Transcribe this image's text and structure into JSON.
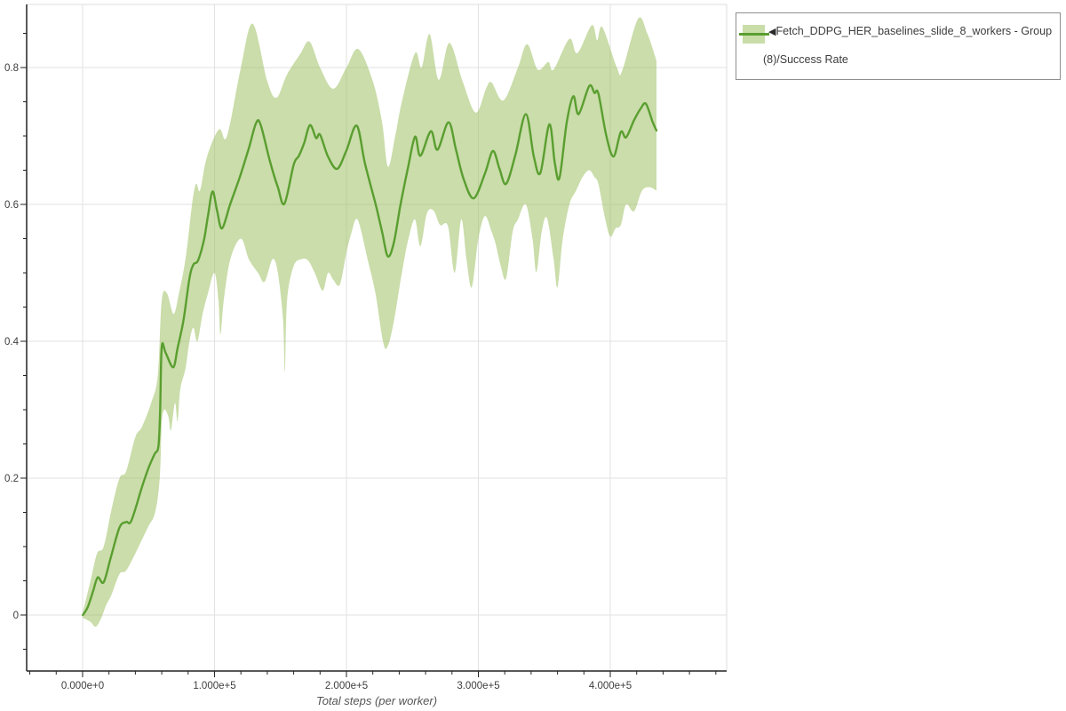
{
  "legend": {
    "collapse_icon": "◀",
    "series_label": "Fetch_DDPG_HER_baselines_slide_8_workers - Group (8)/Success Rate"
  },
  "chart_data": {
    "type": "line",
    "title": "",
    "xlabel": "Total steps (per worker)",
    "ylabel": "",
    "series_name": "Fetch_DDPG_HER_baselines_slide_8_workers - Group (8)/Success Rate",
    "grid": true,
    "legend_position": "top-right",
    "xlim": [
      -42400,
      488200
    ],
    "ylim": [
      -0.0818,
      0.8922
    ],
    "x_major_ticks": [
      0,
      100000,
      200000,
      300000,
      400000
    ],
    "x_tick_labels": [
      "0.000e+0",
      "1.000e+5",
      "2.000e+5",
      "3.000e+5",
      "4.000e+5"
    ],
    "x_minor_step": 20000,
    "y_major_ticks": [
      0,
      0.2,
      0.4,
      0.6,
      0.8
    ],
    "y_tick_labels": [
      "0",
      "0.2",
      "0.4",
      "0.6",
      "0.8"
    ],
    "y_minor_step": 0.05,
    "colors": {
      "line": "#5a9e30",
      "band": "#9fc164",
      "band_opacity": 0.55,
      "grid": "#e2e2e2",
      "axis": "#222222",
      "border": "#dcdcdc",
      "tick_label": "#3d3d3d",
      "axis_title": "#555555"
    },
    "mean": [
      [
        200,
        0.0
      ],
      [
        4000,
        0.012
      ],
      [
        8000,
        0.035
      ],
      [
        11500,
        0.055
      ],
      [
        16000,
        0.048
      ],
      [
        21500,
        0.085
      ],
      [
        28000,
        0.128
      ],
      [
        33000,
        0.136
      ],
      [
        37000,
        0.138
      ],
      [
        45000,
        0.187
      ],
      [
        50000,
        0.215
      ],
      [
        54500,
        0.235
      ],
      [
        57500,
        0.247
      ],
      [
        58800,
        0.3
      ],
      [
        60000,
        0.392
      ],
      [
        63000,
        0.383
      ],
      [
        68700,
        0.362
      ],
      [
        72000,
        0.39
      ],
      [
        76500,
        0.431
      ],
      [
        81000,
        0.492
      ],
      [
        84000,
        0.512
      ],
      [
        87500,
        0.518
      ],
      [
        92000,
        0.548
      ],
      [
        95000,
        0.583
      ],
      [
        98500,
        0.619
      ],
      [
        102000,
        0.59
      ],
      [
        105700,
        0.565
      ],
      [
        112000,
        0.601
      ],
      [
        119000,
        0.639
      ],
      [
        126000,
        0.682
      ],
      [
        131500,
        0.719
      ],
      [
        135000,
        0.716
      ],
      [
        142000,
        0.663
      ],
      [
        148000,
        0.625
      ],
      [
        153000,
        0.601
      ],
      [
        160000,
        0.658
      ],
      [
        164000,
        0.671
      ],
      [
        168000,
        0.69
      ],
      [
        172400,
        0.716
      ],
      [
        177000,
        0.697
      ],
      [
        180000,
        0.702
      ],
      [
        186000,
        0.67
      ],
      [
        193000,
        0.652
      ],
      [
        200000,
        0.679
      ],
      [
        207800,
        0.715
      ],
      [
        214000,
        0.66
      ],
      [
        222000,
        0.601
      ],
      [
        227000,
        0.56
      ],
      [
        231400,
        0.524
      ],
      [
        236000,
        0.545
      ],
      [
        241000,
        0.6
      ],
      [
        246500,
        0.652
      ],
      [
        252000,
        0.699
      ],
      [
        256000,
        0.671
      ],
      [
        264000,
        0.707
      ],
      [
        269000,
        0.68
      ],
      [
        277400,
        0.72
      ],
      [
        283000,
        0.68
      ],
      [
        289000,
        0.636
      ],
      [
        296500,
        0.609
      ],
      [
        305000,
        0.645
      ],
      [
        311000,
        0.678
      ],
      [
        316000,
        0.652
      ],
      [
        321000,
        0.63
      ],
      [
        328000,
        0.672
      ],
      [
        336000,
        0.732
      ],
      [
        342000,
        0.67
      ],
      [
        347000,
        0.646
      ],
      [
        353800,
        0.717
      ],
      [
        358000,
        0.66
      ],
      [
        361500,
        0.639
      ],
      [
        367000,
        0.72
      ],
      [
        372000,
        0.758
      ],
      [
        376000,
        0.732
      ],
      [
        384000,
        0.773
      ],
      [
        388000,
        0.763
      ],
      [
        391000,
        0.762
      ],
      [
        397000,
        0.7
      ],
      [
        402500,
        0.67
      ],
      [
        408000,
        0.706
      ],
      [
        412000,
        0.698
      ],
      [
        418000,
        0.723
      ],
      [
        423000,
        0.74
      ],
      [
        427000,
        0.747
      ],
      [
        432000,
        0.721
      ],
      [
        435000,
        0.708
      ]
    ],
    "band_upper": [
      [
        200,
        0.004
      ],
      [
        6000,
        0.05
      ],
      [
        11000,
        0.09
      ],
      [
        16000,
        0.1
      ],
      [
        22000,
        0.155
      ],
      [
        28000,
        0.2
      ],
      [
        33000,
        0.21
      ],
      [
        40000,
        0.26
      ],
      [
        45000,
        0.275
      ],
      [
        52000,
        0.31
      ],
      [
        57000,
        0.35
      ],
      [
        60000,
        0.46
      ],
      [
        64000,
        0.47
      ],
      [
        69000,
        0.44
      ],
      [
        73000,
        0.47
      ],
      [
        78000,
        0.52
      ],
      [
        83000,
        0.6
      ],
      [
        86000,
        0.63
      ],
      [
        89000,
        0.62
      ],
      [
        93000,
        0.66
      ],
      [
        98000,
        0.69
      ],
      [
        104000,
        0.71
      ],
      [
        108000,
        0.695
      ],
      [
        112000,
        0.72
      ],
      [
        120000,
        0.8
      ],
      [
        129000,
        0.864
      ],
      [
        140000,
        0.78
      ],
      [
        147000,
        0.756
      ],
      [
        155000,
        0.79
      ],
      [
        165000,
        0.82
      ],
      [
        172000,
        0.838
      ],
      [
        180000,
        0.8
      ],
      [
        190000,
        0.769
      ],
      [
        200000,
        0.8
      ],
      [
        209000,
        0.827
      ],
      [
        220000,
        0.78
      ],
      [
        227000,
        0.72
      ],
      [
        231500,
        0.655
      ],
      [
        237000,
        0.7
      ],
      [
        242000,
        0.75
      ],
      [
        252000,
        0.821
      ],
      [
        257000,
        0.8
      ],
      [
        263000,
        0.849
      ],
      [
        270000,
        0.782
      ],
      [
        278000,
        0.836
      ],
      [
        288000,
        0.78
      ],
      [
        298000,
        0.734
      ],
      [
        306000,
        0.77
      ],
      [
        310000,
        0.778
      ],
      [
        319000,
        0.752
      ],
      [
        330000,
        0.8
      ],
      [
        337000,
        0.834
      ],
      [
        345000,
        0.797
      ],
      [
        353000,
        0.808
      ],
      [
        357000,
        0.797
      ],
      [
        369000,
        0.842
      ],
      [
        375000,
        0.821
      ],
      [
        386000,
        0.862
      ],
      [
        390000,
        0.84
      ],
      [
        394000,
        0.859
      ],
      [
        405000,
        0.8
      ],
      [
        409000,
        0.795
      ],
      [
        421000,
        0.871
      ],
      [
        428000,
        0.85
      ],
      [
        435000,
        0.81
      ]
    ],
    "band_lower": [
      [
        200,
        -0.004
      ],
      [
        6000,
        -0.01
      ],
      [
        10000,
        -0.017
      ],
      [
        14000,
        -0.005
      ],
      [
        18000,
        0.015
      ],
      [
        22000,
        0.03
      ],
      [
        28000,
        0.06
      ],
      [
        33000,
        0.065
      ],
      [
        40000,
        0.09
      ],
      [
        45000,
        0.11
      ],
      [
        50000,
        0.13
      ],
      [
        55000,
        0.15
      ],
      [
        58500,
        0.2
      ],
      [
        60000,
        0.28
      ],
      [
        62000,
        0.3
      ],
      [
        65000,
        0.29
      ],
      [
        67000,
        0.27
      ],
      [
        70000,
        0.31
      ],
      [
        72000,
        0.283
      ],
      [
        74000,
        0.33
      ],
      [
        78000,
        0.36
      ],
      [
        81000,
        0.4
      ],
      [
        84000,
        0.42
      ],
      [
        87000,
        0.4
      ],
      [
        91000,
        0.44
      ],
      [
        95000,
        0.47
      ],
      [
        100000,
        0.5
      ],
      [
        103000,
        0.46
      ],
      [
        104500,
        0.41
      ],
      [
        107000,
        0.46
      ],
      [
        112000,
        0.52
      ],
      [
        120000,
        0.55
      ],
      [
        126000,
        0.52
      ],
      [
        133000,
        0.5
      ],
      [
        138000,
        0.487
      ],
      [
        144000,
        0.52
      ],
      [
        148000,
        0.5
      ],
      [
        152000,
        0.43
      ],
      [
        153300,
        0.356
      ],
      [
        155000,
        0.46
      ],
      [
        160000,
        0.51
      ],
      [
        166000,
        0.52
      ],
      [
        171000,
        0.518
      ],
      [
        176000,
        0.5
      ],
      [
        182000,
        0.474
      ],
      [
        186000,
        0.5
      ],
      [
        190000,
        0.49
      ],
      [
        195000,
        0.483
      ],
      [
        200000,
        0.53
      ],
      [
        204000,
        0.56
      ],
      [
        207000,
        0.578
      ],
      [
        210000,
        0.57
      ],
      [
        216000,
        0.52
      ],
      [
        222000,
        0.47
      ],
      [
        228000,
        0.397
      ],
      [
        231500,
        0.394
      ],
      [
        236000,
        0.43
      ],
      [
        242000,
        0.5
      ],
      [
        247000,
        0.55
      ],
      [
        252000,
        0.578
      ],
      [
        256000,
        0.539
      ],
      [
        261000,
        0.587
      ],
      [
        266000,
        0.591
      ],
      [
        271000,
        0.57
      ],
      [
        277000,
        0.568
      ],
      [
        282000,
        0.5
      ],
      [
        287000,
        0.578
      ],
      [
        291000,
        0.52
      ],
      [
        295000,
        0.479
      ],
      [
        300000,
        0.55
      ],
      [
        305000,
        0.583
      ],
      [
        310000,
        0.56
      ],
      [
        313000,
        0.543
      ],
      [
        317000,
        0.51
      ],
      [
        321000,
        0.492
      ],
      [
        326000,
        0.56
      ],
      [
        330000,
        0.578
      ],
      [
        336000,
        0.6
      ],
      [
        341000,
        0.55
      ],
      [
        344000,
        0.501
      ],
      [
        348000,
        0.56
      ],
      [
        352000,
        0.58
      ],
      [
        357000,
        0.52
      ],
      [
        360000,
        0.479
      ],
      [
        364000,
        0.55
      ],
      [
        369000,
        0.6
      ],
      [
        374000,
        0.62
      ],
      [
        379000,
        0.64
      ],
      [
        384000,
        0.65
      ],
      [
        388000,
        0.64
      ],
      [
        391000,
        0.63
      ],
      [
        396000,
        0.58
      ],
      [
        400000,
        0.553
      ],
      [
        404000,
        0.565
      ],
      [
        408000,
        0.57
      ],
      [
        412000,
        0.6
      ],
      [
        418000,
        0.59
      ],
      [
        424000,
        0.62
      ],
      [
        430000,
        0.625
      ],
      [
        435000,
        0.62
      ]
    ]
  }
}
